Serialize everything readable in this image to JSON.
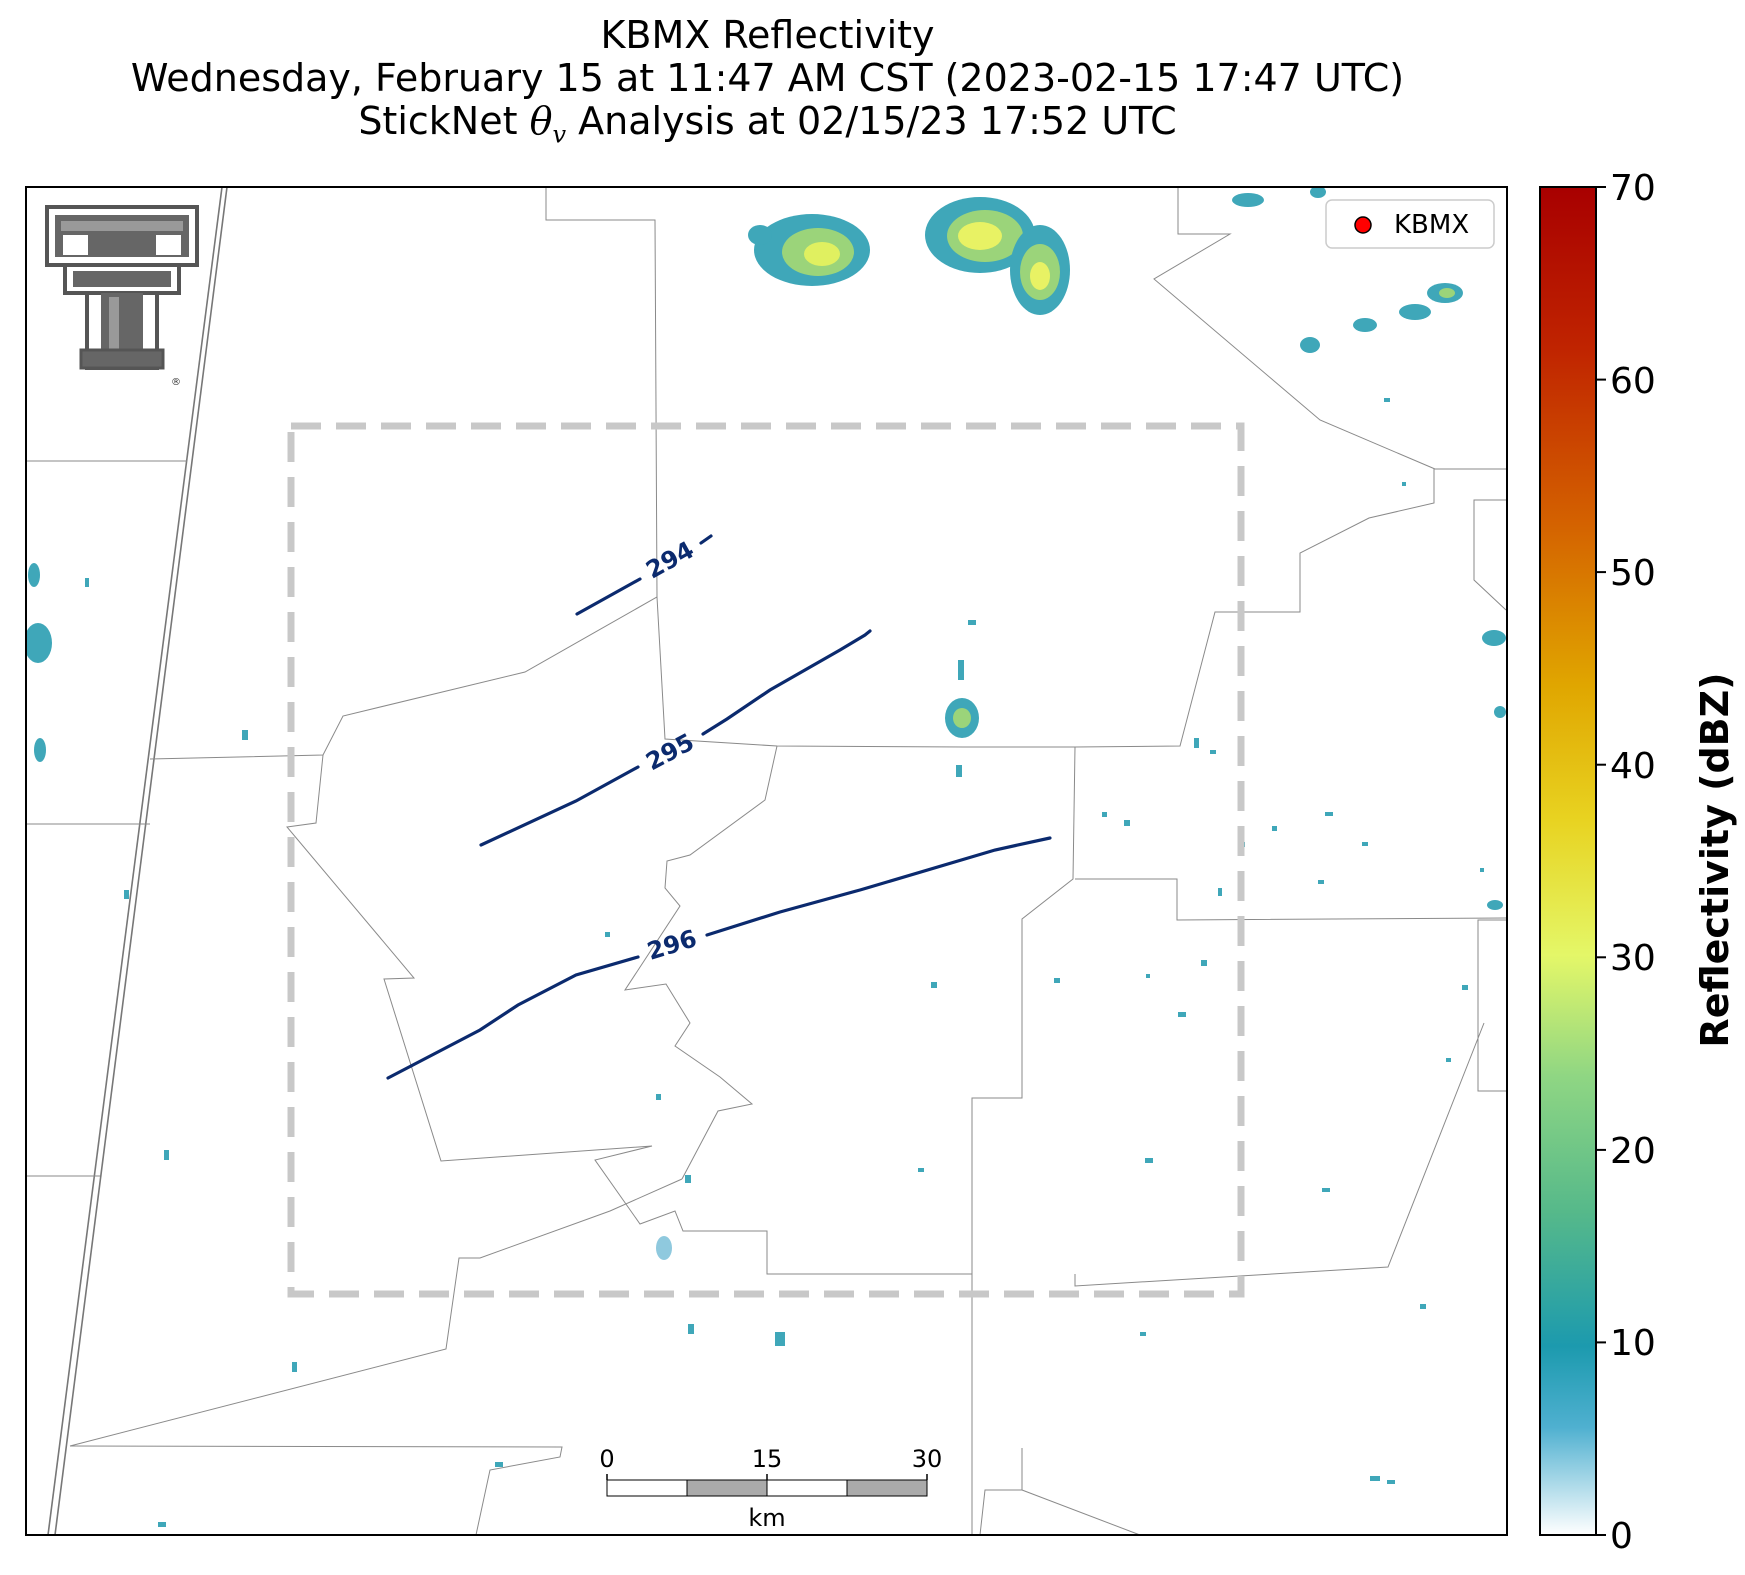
{
  "titles": {
    "line1": "KBMX Reflectivity",
    "line2": "Wednesday, February 15 at 11:47 AM CST (2023-02-15 17:47 UTC)",
    "line3_prefix": "StickNet ",
    "line3_symbol": "θ",
    "line3_subscript": "v",
    "line3_suffix": " Analysis at 02/15/23 17:52 UTC"
  },
  "legend": {
    "marker_label": "KBMX",
    "marker_color": "#ff0000"
  },
  "colorbar": {
    "label": "Reflectivity (dBZ)",
    "ticks": [
      "0",
      "10",
      "20",
      "30",
      "40",
      "50",
      "60",
      "70"
    ],
    "stops": [
      "#ffffff",
      "#4fb0d0",
      "#1c9aae",
      "#56b98a",
      "#8fd683",
      "#e4f768",
      "#e8d321",
      "#e0a600",
      "#d46200",
      "#c02400",
      "#a80000"
    ]
  },
  "contours": [
    {
      "label": "294",
      "color": "#0b2a6e"
    },
    {
      "label": "295",
      "color": "#0b2a6e"
    },
    {
      "label": "296",
      "color": "#0b2a6e"
    }
  ],
  "scalebar": {
    "ticks": [
      "0",
      "15",
      "30"
    ],
    "unit": "km"
  },
  "logo": {
    "name": "Texas Tech double-T logo",
    "text": "®"
  }
}
